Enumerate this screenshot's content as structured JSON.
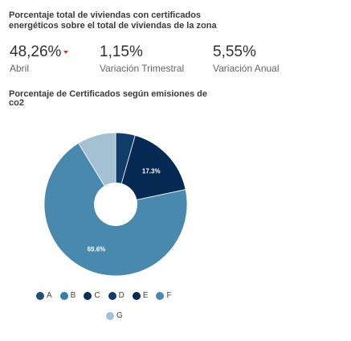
{
  "header": {
    "title_line1": "Porcentaje total de viviendas con certificados",
    "title_line2": "energéticos sobre el total de viviendas de la zona"
  },
  "kpis": [
    {
      "value": "48,26%",
      "label": "Abril",
      "trend": "down",
      "trend_color": "#d9343a"
    },
    {
      "value": "1,15%",
      "label": "Variación Trimestral"
    },
    {
      "value": "5,55%",
      "label": "Variación Anual"
    }
  ],
  "chart_title": {
    "line1": "Porcentaje de Certificados según emisiones de",
    "line2": "co2"
  },
  "chart_data": {
    "type": "pie",
    "title": "Porcentaje de Certificados según emisiones de co2",
    "style": "donut",
    "categories": [
      "A",
      "B",
      "C",
      "D",
      "E",
      "F",
      "G"
    ],
    "values": [
      0.0,
      0.0,
      0.0,
      4.4,
      17.3,
      69.6,
      8.7
    ],
    "data_labels": [
      "",
      "",
      "",
      "",
      "17.3%",
      "69.6%",
      ""
    ],
    "colors": [
      "#1f4e79",
      "#3c7fa6",
      "#0b2f5a",
      "#113d6b",
      "#062a54",
      "#4a89ae",
      "#a5bfd3"
    ],
    "legend_position": "bottom"
  }
}
